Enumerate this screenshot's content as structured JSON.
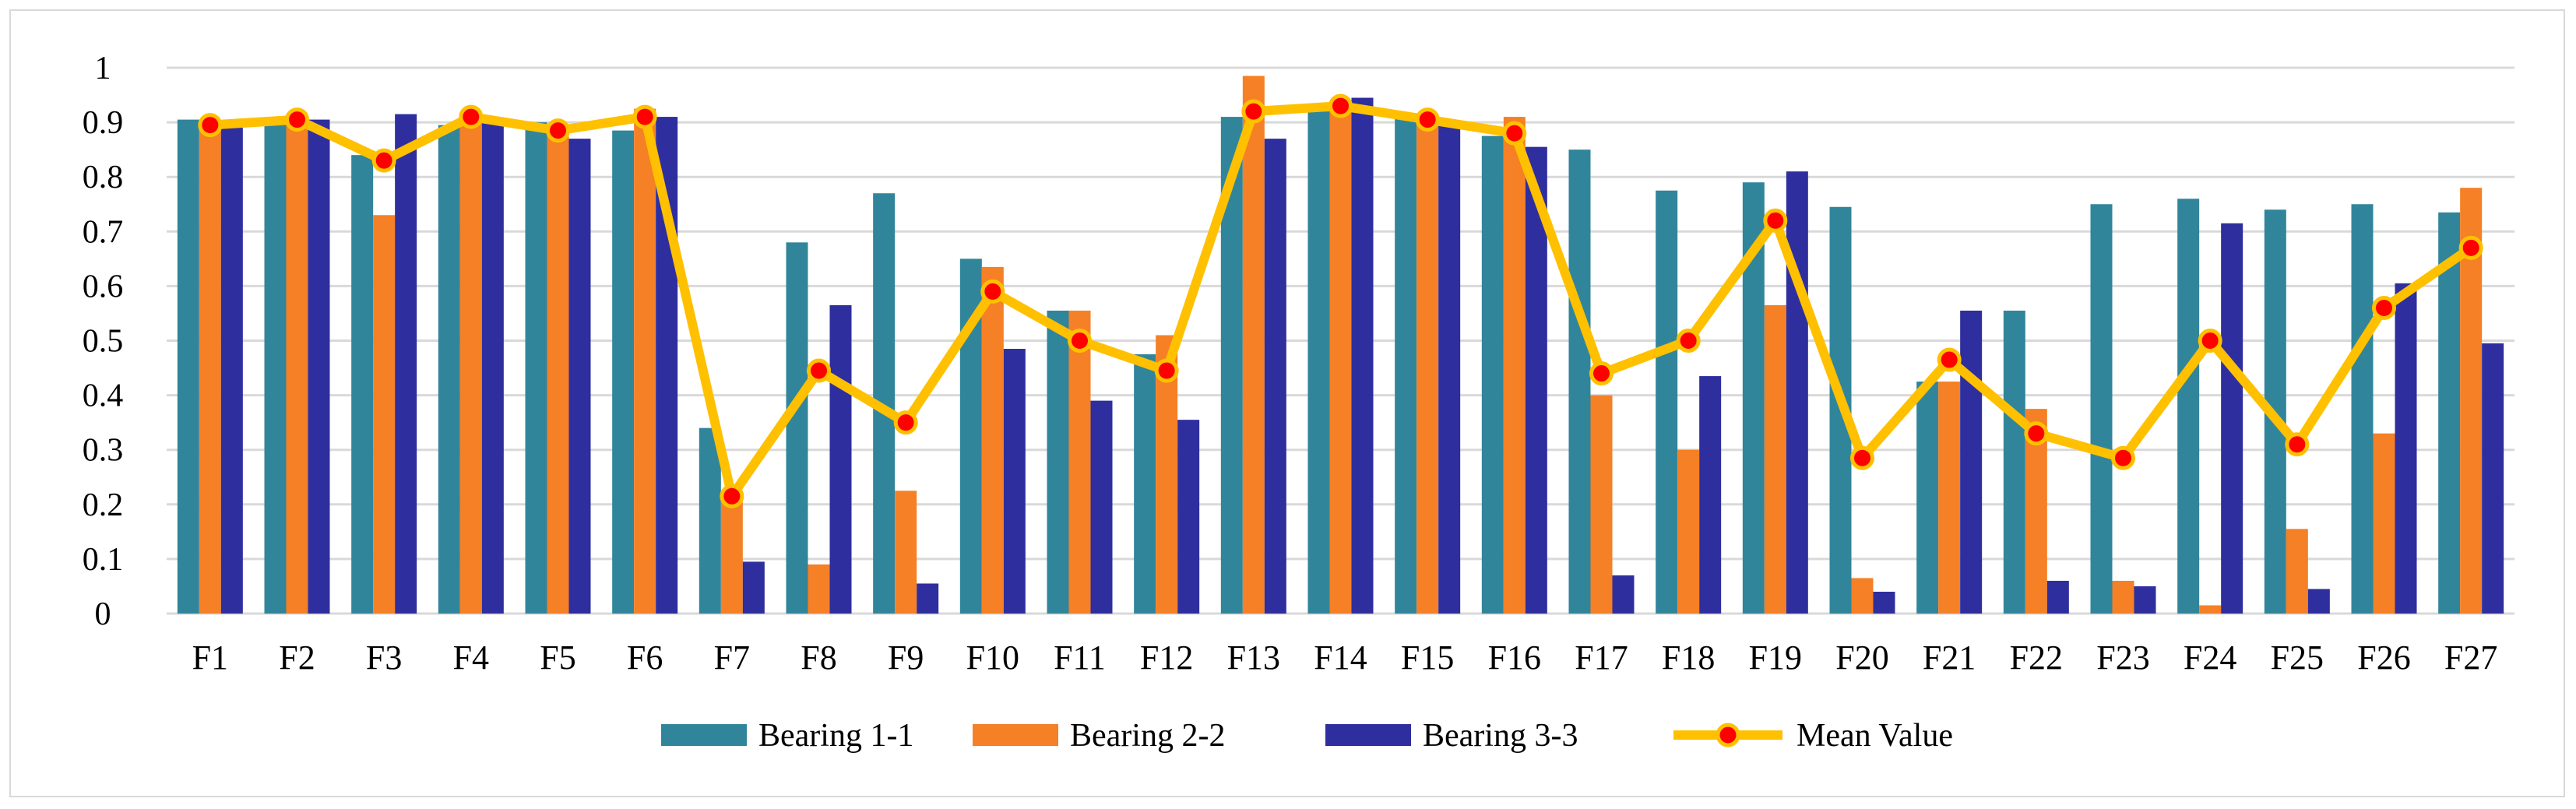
{
  "chart_data": {
    "type": "bar",
    "title": "",
    "xlabel": "",
    "ylabel": "",
    "ylim": [
      0,
      1
    ],
    "y_ticks": [
      {
        "value": 0,
        "label": "0"
      },
      {
        "value": 0.1,
        "label": "0.1"
      },
      {
        "value": 0.2,
        "label": "0.2"
      },
      {
        "value": 0.3,
        "label": "0.3"
      },
      {
        "value": 0.4,
        "label": "0.4"
      },
      {
        "value": 0.5,
        "label": "0.5"
      },
      {
        "value": 0.6,
        "label": "0.6"
      },
      {
        "value": 0.7,
        "label": "0.7"
      },
      {
        "value": 0.8,
        "label": "0.8"
      },
      {
        "value": 0.9,
        "label": "0.9"
      },
      {
        "value": 1,
        "label": "1"
      }
    ],
    "grid": true,
    "legend_position": "bottom",
    "categories": [
      "F1",
      "F2",
      "F3",
      "F4",
      "F5",
      "F6",
      "F7",
      "F8",
      "F9",
      "F10",
      "F11",
      "F12",
      "F13",
      "F14",
      "F15",
      "F16",
      "F17",
      "F18",
      "F19",
      "F20",
      "F21",
      "F22",
      "F23",
      "F24",
      "F25",
      "F26",
      "F27"
    ],
    "series": [
      {
        "name": "Bearing 1-1",
        "kind": "bar",
        "color": "#31859b",
        "values": [
          0.905,
          0.9,
          0.84,
          0.895,
          0.9,
          0.885,
          0.34,
          0.68,
          0.77,
          0.65,
          0.555,
          0.475,
          0.91,
          0.92,
          0.915,
          0.875,
          0.85,
          0.775,
          0.79,
          0.745,
          0.425,
          0.555,
          0.75,
          0.76,
          0.74,
          0.75,
          0.735
        ]
      },
      {
        "name": "Bearing 2-2",
        "kind": "bar",
        "color": "#f58025",
        "values": [
          0.905,
          0.915,
          0.73,
          0.9,
          0.88,
          0.925,
          0.205,
          0.09,
          0.225,
          0.635,
          0.555,
          0.51,
          0.985,
          0.925,
          0.915,
          0.91,
          0.4,
          0.3,
          0.565,
          0.065,
          0.425,
          0.375,
          0.06,
          0.015,
          0.155,
          0.33,
          0.78
        ]
      },
      {
        "name": "Bearing 3-3",
        "kind": "bar",
        "color": "#2e2e9e",
        "values": [
          0.895,
          0.905,
          0.915,
          0.9,
          0.87,
          0.91,
          0.095,
          0.565,
          0.055,
          0.485,
          0.39,
          0.355,
          0.87,
          0.945,
          0.895,
          0.855,
          0.07,
          0.435,
          0.81,
          0.04,
          0.555,
          0.06,
          0.05,
          0.715,
          0.045,
          0.605,
          0.495
        ]
      },
      {
        "name": "Mean Value",
        "kind": "line",
        "color": "#ffc000",
        "marker_color": "#ff0000",
        "values": [
          0.895,
          0.905,
          0.83,
          0.91,
          0.885,
          0.91,
          0.215,
          0.445,
          0.35,
          0.59,
          0.5,
          0.445,
          0.92,
          0.93,
          0.905,
          0.88,
          0.44,
          0.5,
          0.72,
          0.285,
          0.465,
          0.33,
          0.285,
          0.5,
          0.31,
          0.56,
          0.67
        ]
      }
    ]
  }
}
